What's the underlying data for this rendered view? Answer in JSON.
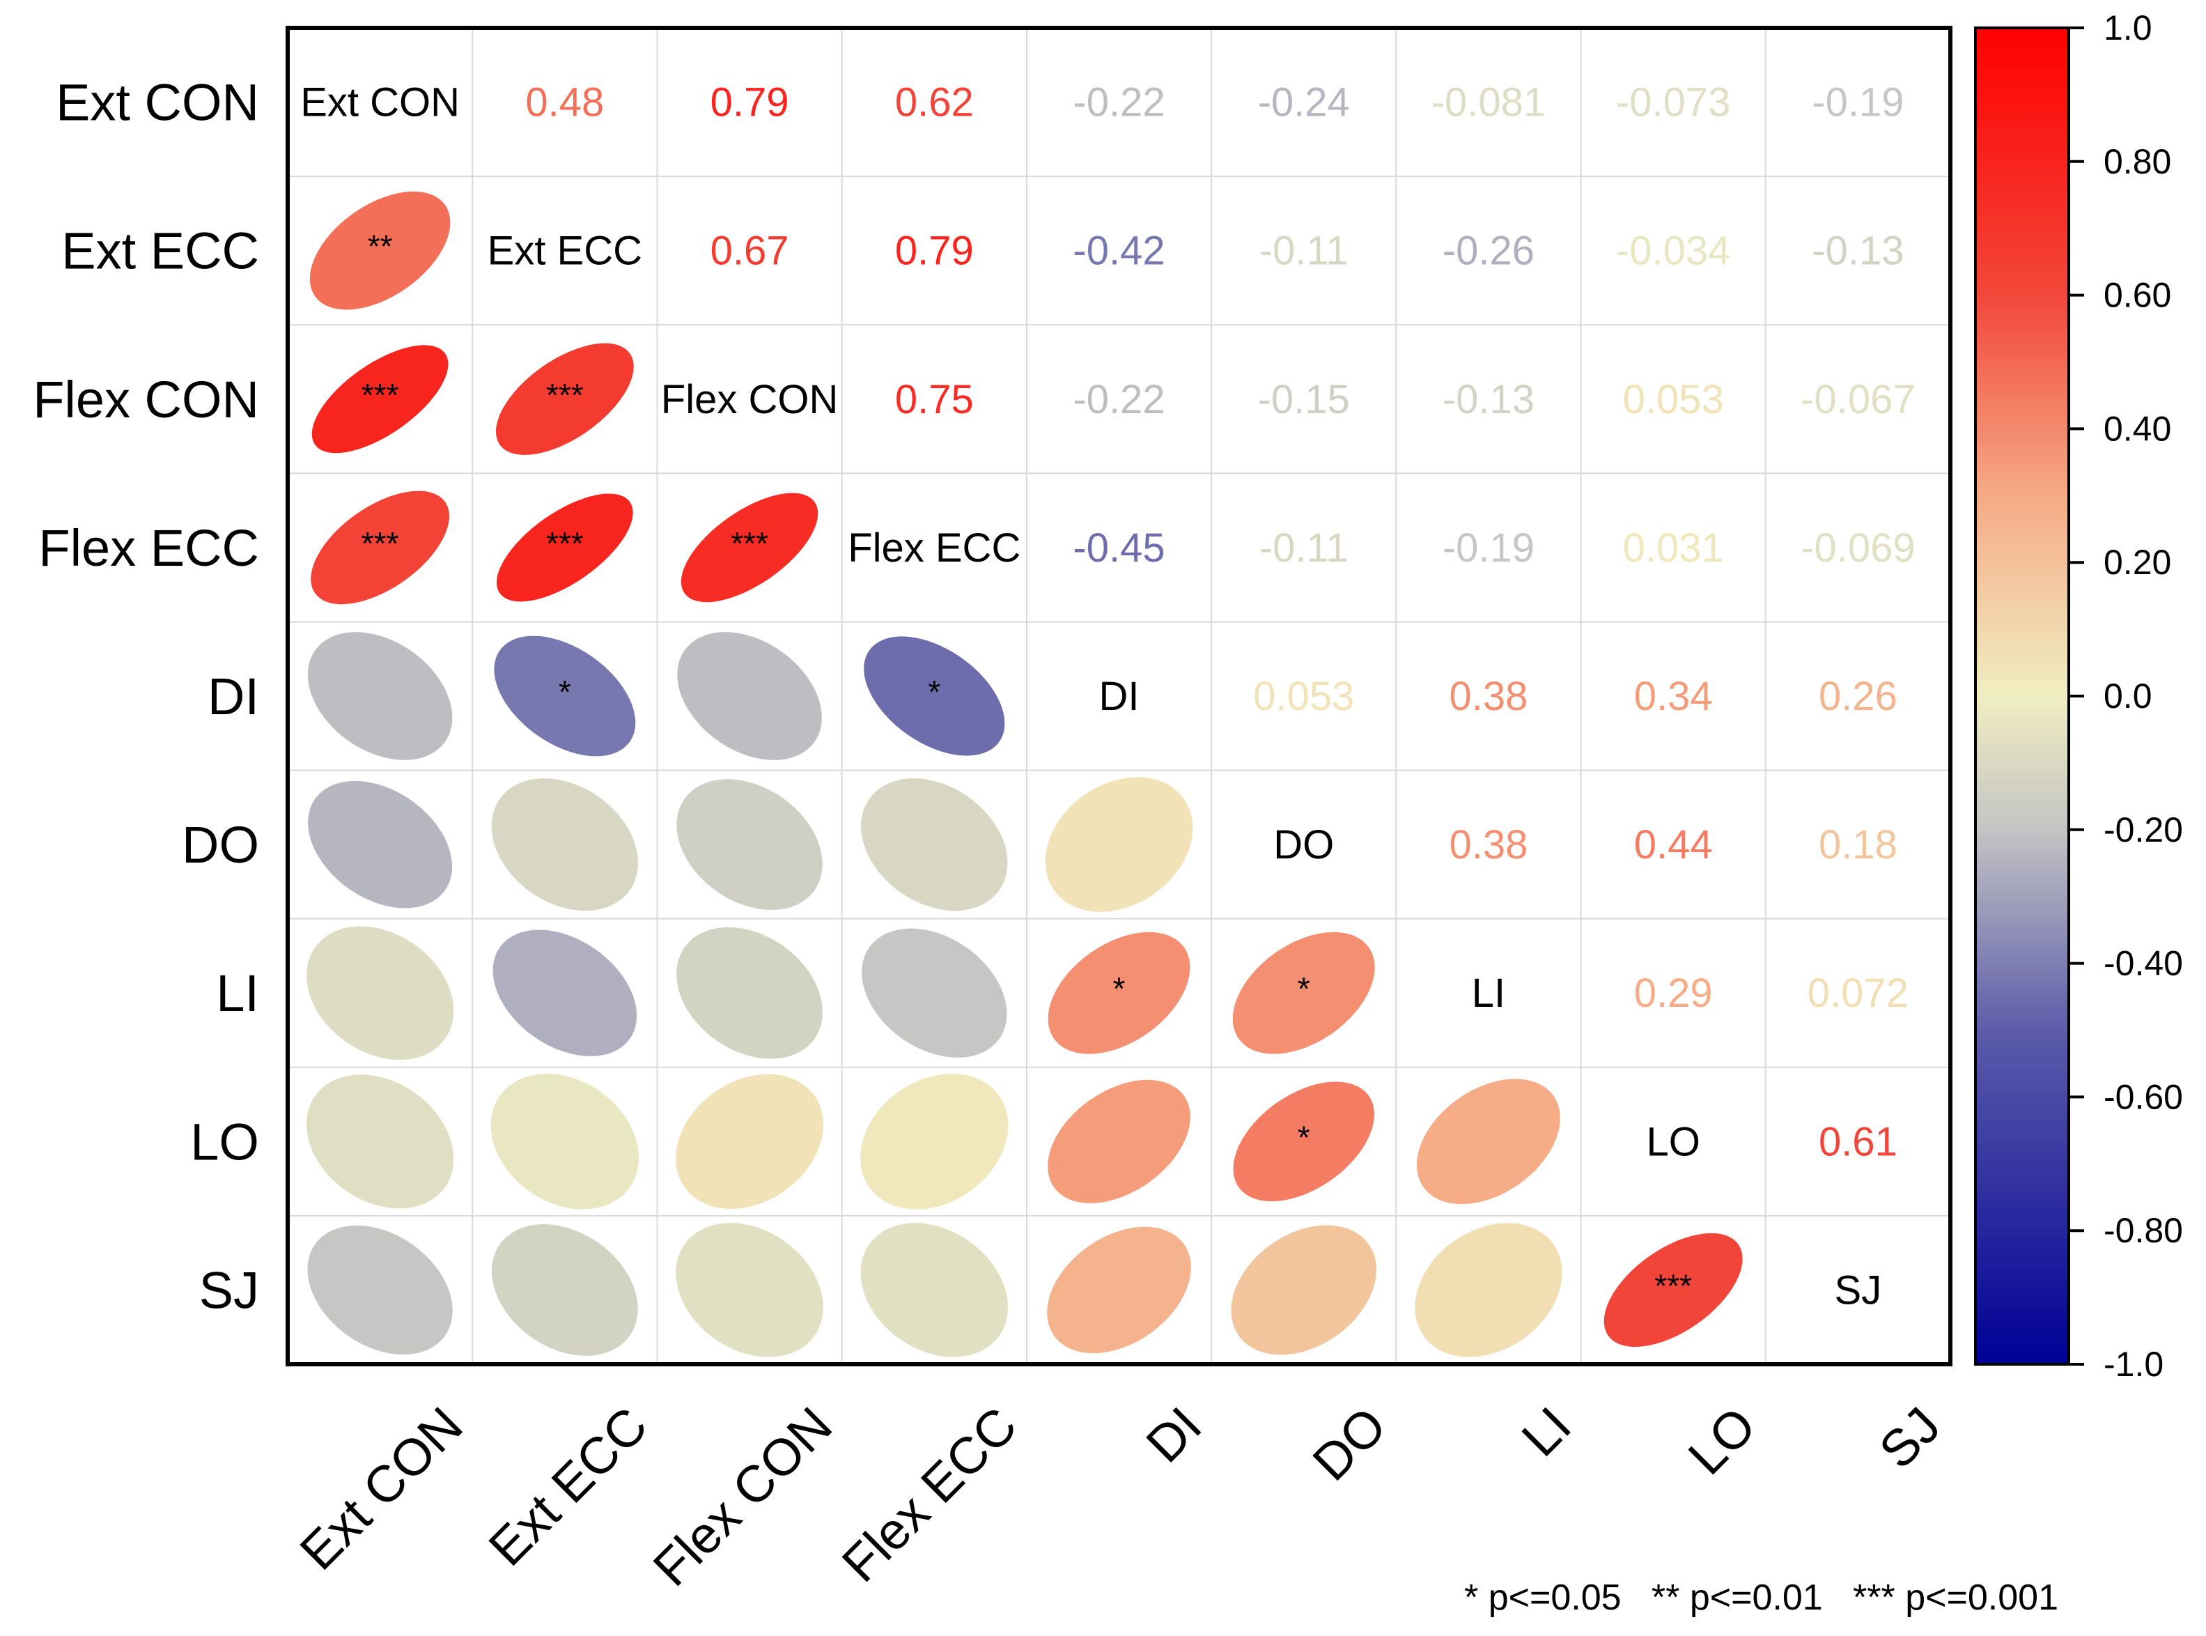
{
  "chart_data": {
    "type": "heatmap",
    "subtype": "correlation-matrix",
    "variables": [
      "Ext CON",
      "Ext ECC",
      "Flex CON",
      "Flex ECC",
      "DI",
      "DO",
      "LI",
      "LO",
      "SJ"
    ],
    "matrix": [
      [
        1,
        0.48,
        0.79,
        0.62,
        -0.22,
        -0.24,
        -0.081,
        -0.073,
        -0.19
      ],
      [
        0.48,
        1,
        0.67,
        0.79,
        -0.42,
        -0.11,
        -0.26,
        -0.034,
        -0.13
      ],
      [
        0.79,
        0.67,
        1,
        0.75,
        -0.22,
        -0.15,
        -0.13,
        0.053,
        -0.067
      ],
      [
        0.62,
        0.79,
        0.75,
        1,
        -0.45,
        -0.11,
        -0.19,
        0.031,
        -0.069
      ],
      [
        -0.22,
        -0.42,
        -0.22,
        -0.45,
        1,
        0.053,
        0.38,
        0.34,
        0.26
      ],
      [
        -0.24,
        -0.11,
        -0.15,
        -0.11,
        0.053,
        1,
        0.38,
        0.44,
        0.18
      ],
      [
        -0.081,
        -0.26,
        -0.13,
        -0.19,
        0.38,
        0.38,
        1,
        0.29,
        0.072
      ],
      [
        -0.073,
        -0.034,
        0.053,
        0.031,
        0.34,
        0.44,
        0.29,
        1,
        0.61
      ],
      [
        -0.19,
        -0.13,
        -0.067,
        -0.069,
        0.26,
        0.18,
        0.072,
        0.61,
        1
      ]
    ],
    "upper_labels": [
      [
        "",
        "0.48",
        "0.79",
        "0.62",
        "-0.22",
        "-0.24",
        "-0.081",
        "-0.073",
        "-0.19"
      ],
      [
        "",
        "",
        "0.67",
        "0.79",
        "-0.42",
        "-0.11",
        "-0.26",
        "-0.034",
        "-0.13"
      ],
      [
        "",
        "",
        "",
        "0.75",
        "-0.22",
        "-0.15",
        "-0.13",
        "0.053",
        "-0.067"
      ],
      [
        "",
        "",
        "",
        "",
        "-0.45",
        "-0.11",
        "-0.19",
        "0.031",
        "-0.069"
      ],
      [
        "",
        "",
        "",
        "",
        "",
        "0.053",
        "0.38",
        "0.34",
        "0.26"
      ],
      [
        "",
        "",
        "",
        "",
        "",
        "",
        "0.38",
        "0.44",
        "0.18"
      ],
      [
        "",
        "",
        "",
        "",
        "",
        "",
        "",
        "0.29",
        "0.072"
      ],
      [
        "",
        "",
        "",
        "",
        "",
        "",
        "",
        "",
        "0.61"
      ],
      [
        "",
        "",
        "",
        "",
        "",
        "",
        "",
        "",
        ""
      ]
    ],
    "significance": [
      [
        "",
        "",
        "",
        "",
        "",
        "",
        "",
        "",
        ""
      ],
      [
        "**",
        "",
        "",
        "",
        "",
        "",
        "",
        "",
        ""
      ],
      [
        "***",
        "***",
        "",
        "",
        "",
        "",
        "",
        "",
        ""
      ],
      [
        "***",
        "***",
        "***",
        "",
        "",
        "",
        "",
        "",
        ""
      ],
      [
        "",
        "*",
        "",
        "*",
        "",
        "",
        "",
        "",
        ""
      ],
      [
        "",
        "",
        "",
        "",
        "",
        "",
        "",
        "",
        ""
      ],
      [
        "",
        "",
        "",
        "",
        "*",
        "*",
        "",
        "",
        ""
      ],
      [
        "",
        "",
        "",
        "",
        "",
        "*",
        "",
        "",
        ""
      ],
      [
        "",
        "",
        "",
        "",
        "",
        "",
        "",
        "***",
        ""
      ]
    ],
    "lower_shape": "ellipse",
    "upper_display": "numbers",
    "diagonal_display": "variable names",
    "colorbar": {
      "range": [
        -1.0,
        1.0
      ],
      "tick_labels": [
        "1.0",
        "0.80",
        "0.60",
        "0.40",
        "0.20",
        "0.0",
        "-0.20",
        "-0.40",
        "-0.60",
        "-0.80",
        "-1.0"
      ],
      "tick_values": [
        1.0,
        0.8,
        0.6,
        0.4,
        0.2,
        0.0,
        -0.2,
        -0.4,
        -0.6,
        -0.8,
        -1.0
      ],
      "colors": [
        {
          "value": -1.0,
          "color": "#000096"
        },
        {
          "value": -0.5,
          "color": "#5c5caa"
        },
        {
          "value": -0.2,
          "color": "#c4c4c4"
        },
        {
          "value": 0.0,
          "color": "#f0eec2"
        },
        {
          "value": 0.3,
          "color": "#f5aa85"
        },
        {
          "value": 0.6,
          "color": "#f2473a"
        },
        {
          "value": 1.0,
          "color": "#ff0000"
        }
      ]
    },
    "legend_note": "* p<=0.05   ** p<=0.01   *** p<=0.001"
  }
}
